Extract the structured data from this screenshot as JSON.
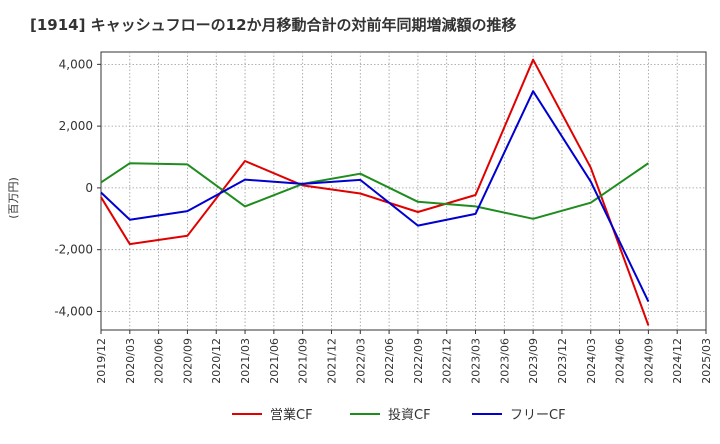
{
  "chart_data": {
    "type": "line",
    "title": "[1914]  キャッシュフローの12か月移動合計の対前年同期増減額の推移",
    "ylabel": "(百万円)",
    "xlabel": "",
    "ylim": [
      -4600,
      4400
    ],
    "yticks": [
      4000,
      2000,
      0,
      -2000,
      -4000
    ],
    "ytick_labels": [
      "4,000",
      "2,000",
      "0",
      "-2,000",
      "-4,000"
    ],
    "x_categories": [
      "2019/12",
      "2020/03",
      "2020/06",
      "2020/09",
      "2020/12",
      "2021/03",
      "2021/06",
      "2021/09",
      "2021/12",
      "2022/03",
      "2022/06",
      "2022/09",
      "2022/12",
      "2023/03",
      "2023/06",
      "2023/09",
      "2023/12",
      "2024/03",
      "2024/06",
      "2024/09",
      "2024/12",
      "2025/03"
    ],
    "grid": true,
    "legend_position": "bottom",
    "series": [
      {
        "name": "営業CF",
        "color": "#e00000",
        "points": [
          [
            "2019/12",
            -300
          ],
          [
            "2020/03",
            -1820
          ],
          [
            "2020/09",
            -1550
          ],
          [
            "2021/03",
            870
          ],
          [
            "2021/09",
            80
          ],
          [
            "2022/03",
            -180
          ],
          [
            "2022/09",
            -780
          ],
          [
            "2023/03",
            -230
          ],
          [
            "2023/09",
            4150
          ],
          [
            "2024/03",
            650
          ],
          [
            "2024/09",
            -4450
          ]
        ]
      },
      {
        "name": "投資CF",
        "color": "#1e8c1e",
        "points": [
          [
            "2019/12",
            180
          ],
          [
            "2020/03",
            800
          ],
          [
            "2020/09",
            760
          ],
          [
            "2021/03",
            -600
          ],
          [
            "2021/09",
            130
          ],
          [
            "2022/03",
            460
          ],
          [
            "2022/09",
            -450
          ],
          [
            "2023/03",
            -600
          ],
          [
            "2023/09",
            -1000
          ],
          [
            "2024/03",
            -480
          ],
          [
            "2024/09",
            800
          ]
        ]
      },
      {
        "name": "フリーCF",
        "color": "#0000d0",
        "points": [
          [
            "2019/12",
            -150
          ],
          [
            "2020/03",
            -1030
          ],
          [
            "2020/09",
            -750
          ],
          [
            "2021/03",
            270
          ],
          [
            "2021/09",
            130
          ],
          [
            "2022/03",
            260
          ],
          [
            "2022/09",
            -1220
          ],
          [
            "2023/03",
            -840
          ],
          [
            "2023/09",
            3130
          ],
          [
            "2024/03",
            200
          ],
          [
            "2024/09",
            -3680
          ]
        ]
      }
    ]
  }
}
